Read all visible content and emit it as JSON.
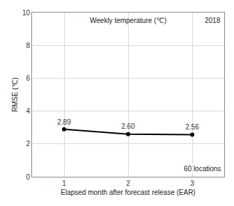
{
  "chart_data": {
    "type": "line",
    "x": [
      1,
      2,
      3
    ],
    "values": [
      2.89,
      2.6,
      2.56
    ],
    "value_labels": [
      "2.89",
      "2.60",
      "2.56"
    ],
    "data_labels": true,
    "color": "#000000",
    "marker": "circle",
    "x_label": "Elapsed month after forecast release (EAR)",
    "y_label": "RMSE (℃)",
    "xlim": [
      0.5,
      3.5
    ],
    "xticks": [
      1,
      2,
      3
    ],
    "ylim": [
      0,
      10
    ],
    "yticks": [
      0,
      2,
      4,
      6,
      8,
      10
    ],
    "grid": true,
    "annotations": [
      "Weekly temperature (℃)",
      "2018",
      "60 locations"
    ]
  }
}
